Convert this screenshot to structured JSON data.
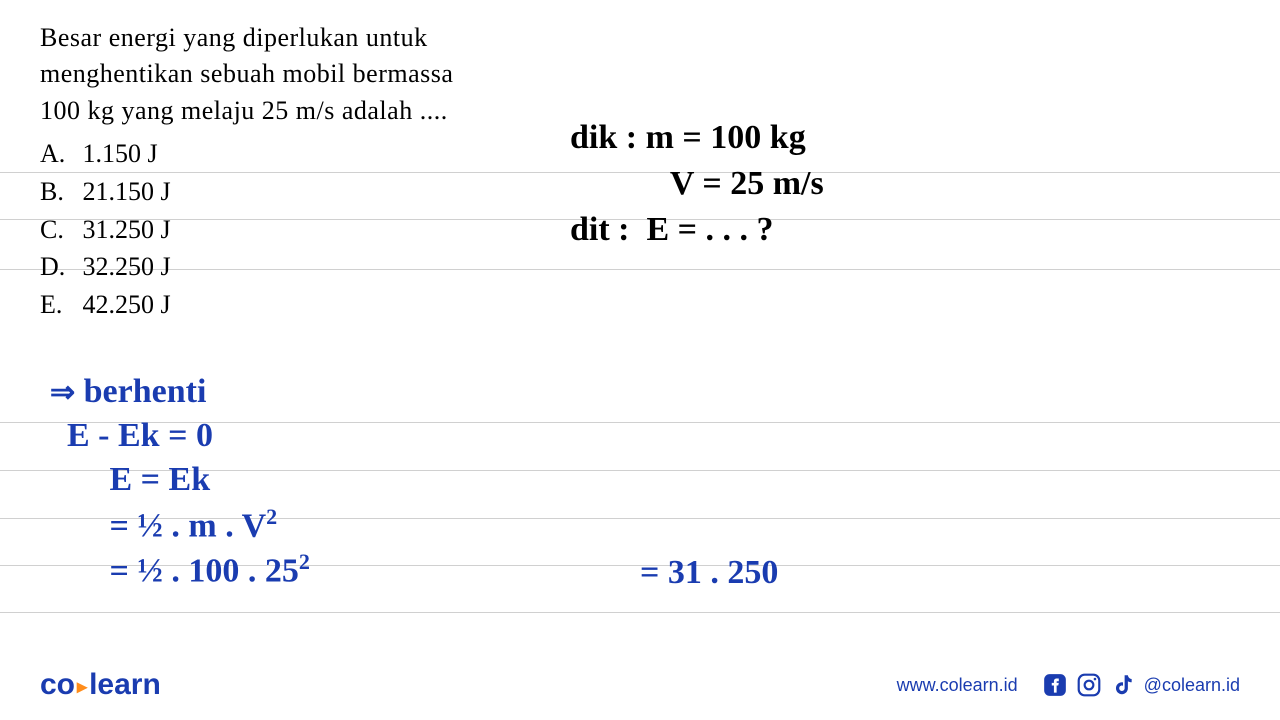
{
  "colors": {
    "text": "#000000",
    "handwriting_blue": "#1a3cb0",
    "handwriting_black": "#000000",
    "rule_line": "#d0d0d0",
    "logo_blue": "#1a3cb0",
    "logo_orange": "#ff8c1a",
    "background": "#ffffff"
  },
  "question": {
    "text": "Besar energi yang diperlukan untuk menghentikan sebuah mobil bermassa 100 kg yang melaju 25 m/s adalah ....",
    "fontsize": 26,
    "options": [
      {
        "letter": "A.",
        "value": "1.150 J"
      },
      {
        "letter": "B.",
        "value": "21.150 J"
      },
      {
        "letter": "C.",
        "value": "31.250 J"
      },
      {
        "letter": "D.",
        "value": "32.250 J"
      },
      {
        "letter": "E.",
        "value": "42.250 J"
      }
    ]
  },
  "handwriting_right": {
    "color": "#000000",
    "fontsize": 34,
    "lines": {
      "l1_label": "dik :",
      "l1_eq": "m = 100 kg",
      "l2_eq": "V = 25 m/s",
      "l3_label": "dit :",
      "l3_eq": "E  =  . . . ?"
    }
  },
  "handwriting_left": {
    "color": "#1a3cb0",
    "fontsize": 34,
    "lines": {
      "arrow": "⇒",
      "l1": "berhenti",
      "l2": "E - Ek  =   0",
      "l3": "       E   =   Ek",
      "l4_a": "           =   ½ . m . V",
      "l4_exp": "2",
      "l5_a": "           =  ½ . 100  .  25",
      "l5_exp": "2",
      "result": "=  31 . 250"
    }
  },
  "ruled_lines_y": [
    172,
    219,
    269,
    422,
    470,
    518,
    565,
    612
  ],
  "footer": {
    "logo_co": "co",
    "logo_learn": "learn",
    "website": "www.colearn.id",
    "handle": "@colearn.id"
  }
}
